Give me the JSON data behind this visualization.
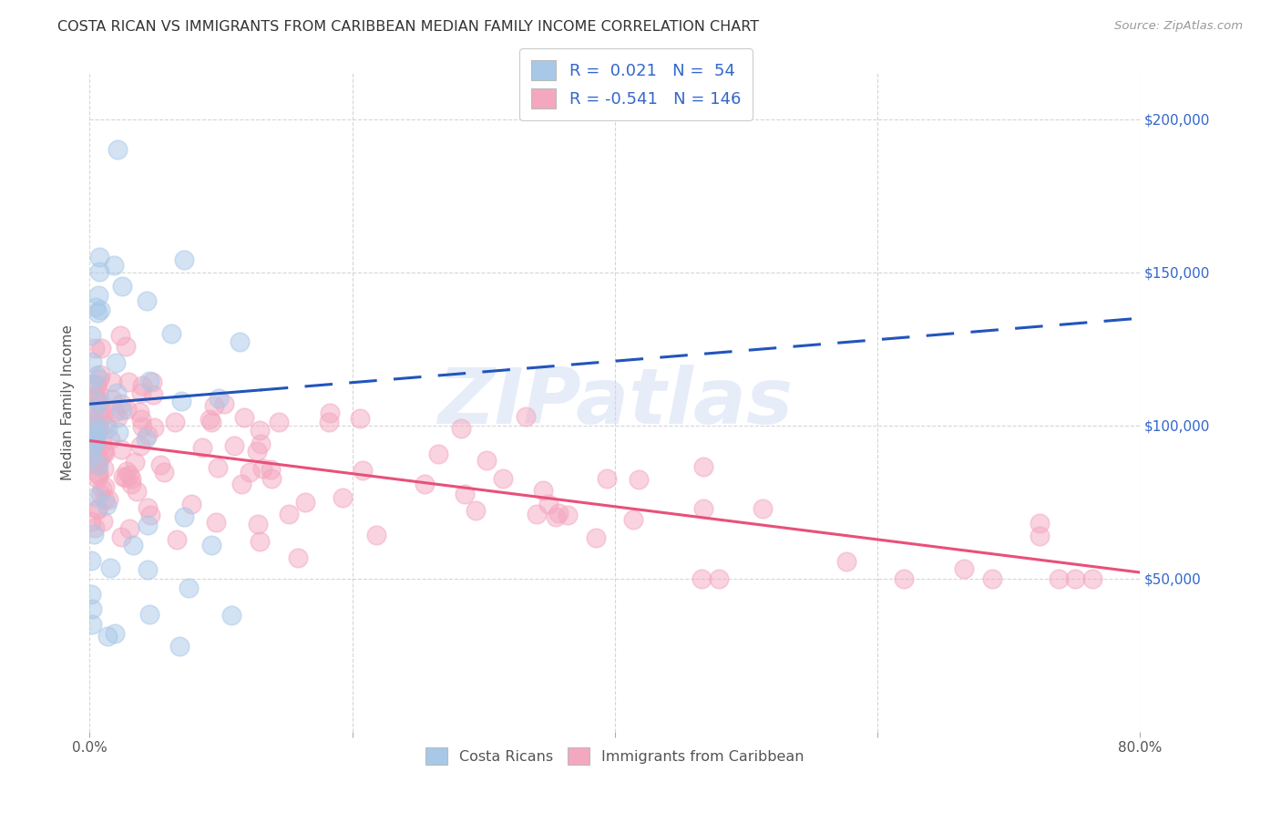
{
  "title": "COSTA RICAN VS IMMIGRANTS FROM CARIBBEAN MEDIAN FAMILY INCOME CORRELATION CHART",
  "source": "Source: ZipAtlas.com",
  "ylabel": "Median Family Income",
  "y_tick_labels": [
    "$50,000",
    "$100,000",
    "$150,000",
    "$200,000"
  ],
  "y_tick_values": [
    50000,
    100000,
    150000,
    200000
  ],
  "y_min": 0,
  "y_max": 215000,
  "x_min": 0.0,
  "x_max": 0.8,
  "blue_color": "#a8c8e8",
  "pink_color": "#f4a8c0",
  "trend_blue": "#2255bb",
  "trend_pink": "#e8507a",
  "legend_text_color": "#3366cc",
  "background_color": "#ffffff",
  "watermark_color": "#c8d8f0",
  "cr_seed": 12,
  "car_seed": 7
}
